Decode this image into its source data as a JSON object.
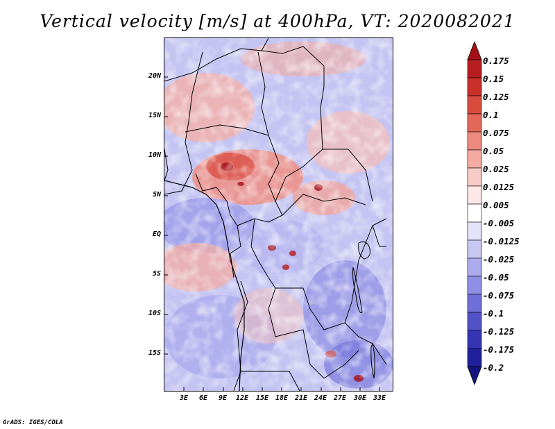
{
  "title": "Vertical velocity [m/s] at 400hPa, VT: 2020082021",
  "credit": "GrADS: IGES/COLA",
  "map": {
    "lat_labels": [
      "20N",
      "15N",
      "10N",
      "5N",
      "EQ",
      "5S",
      "10S",
      "15S"
    ],
    "lon_labels": [
      "3E",
      "6E",
      "9E",
      "12E",
      "15E",
      "18E",
      "21E",
      "24E",
      "27E",
      "30E",
      "33E"
    ]
  },
  "colorbar": {
    "labels": [
      "0.175",
      "0.15",
      "0.125",
      "0.1",
      "0.075",
      "0.05",
      "0.025",
      "0.0125",
      "0.005",
      "-0.005",
      "-0.0125",
      "-0.025",
      "-0.05",
      "-0.075",
      "-0.1",
      "-0.125",
      "-0.175",
      "-0.2"
    ],
    "colors": [
      "#a50f15",
      "#b51d20",
      "#c8302c",
      "#d94a3e",
      "#e3685a",
      "#ec8a7d",
      "#f3aba1",
      "#f8ccc6",
      "#fce9e7",
      "#ffffff",
      "#e3e3fa",
      "#c8c8f3",
      "#ababed",
      "#8e8ee4",
      "#6f6fd8",
      "#5252c8",
      "#3535b3",
      "#20209a",
      "#14147f"
    ]
  }
}
